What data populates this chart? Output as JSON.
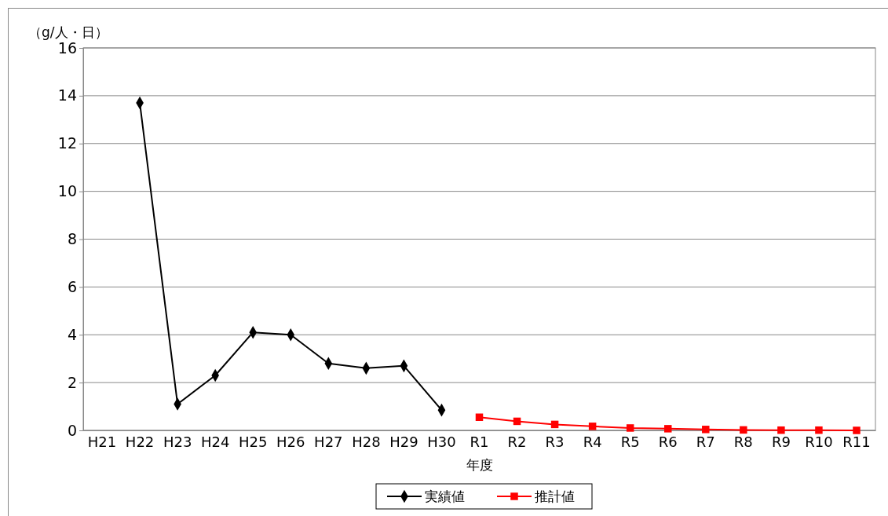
{
  "chart_data": {
    "type": "line",
    "ylabel": "（g/人・日）",
    "xlabel": "年度",
    "categories": [
      "H21",
      "H22",
      "H23",
      "H24",
      "H25",
      "H26",
      "H27",
      "H28",
      "H29",
      "H30",
      "R1",
      "R2",
      "R3",
      "R4",
      "R5",
      "R6",
      "R7",
      "R8",
      "R9",
      "R10",
      "R11"
    ],
    "ylim": [
      0,
      16
    ],
    "yticks": [
      0,
      2,
      4,
      6,
      8,
      10,
      12,
      14,
      16
    ],
    "grid": "y",
    "legend": "bottom",
    "series": [
      {
        "name": "実績値",
        "color": "#000000",
        "marker": "diamond",
        "values": [
          null,
          13.7,
          1.1,
          2.3,
          4.1,
          4.0,
          2.8,
          2.6,
          2.7,
          0.85,
          null,
          null,
          null,
          null,
          null,
          null,
          null,
          null,
          null,
          null,
          null
        ]
      },
      {
        "name": "推計値",
        "color": "#ff0000",
        "marker": "square",
        "values": [
          null,
          null,
          null,
          null,
          null,
          null,
          null,
          null,
          null,
          null,
          0.55,
          0.38,
          0.25,
          0.17,
          0.1,
          0.07,
          0.04,
          0.02,
          0.01,
          0.01,
          0.0
        ]
      }
    ]
  }
}
